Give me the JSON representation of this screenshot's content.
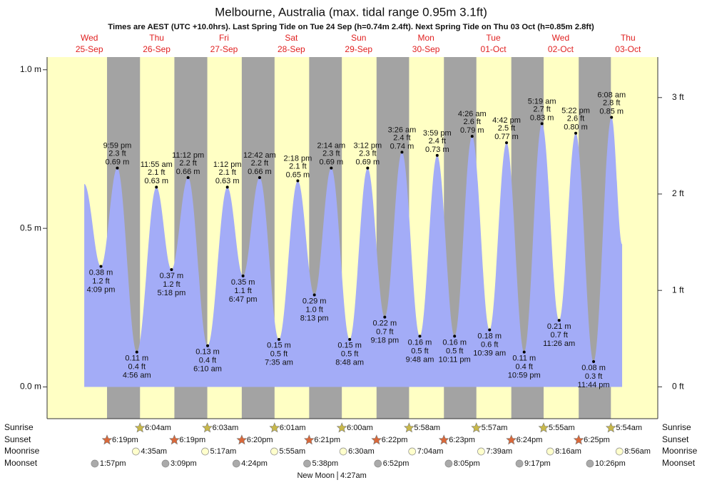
{
  "header": {
    "title": "Melbourne, Australia (max. tidal range 0.95m 3.1ft)",
    "subtitle": "Times are AEST (UTC +10.0hrs). Last Spring Tide on Tue 24 Sep (h=0.74m 2.4ft). Next Spring Tide on Thu 03 Oct (h=0.85m 2.8ft)"
  },
  "chart_data": {
    "type": "area",
    "days": [
      {
        "weekday": "Wed",
        "date": "25-Sep"
      },
      {
        "weekday": "Thu",
        "date": "26-Sep"
      },
      {
        "weekday": "Fri",
        "date": "27-Sep"
      },
      {
        "weekday": "Sat",
        "date": "28-Sep"
      },
      {
        "weekday": "Sun",
        "date": "29-Sep"
      },
      {
        "weekday": "Mon",
        "date": "30-Sep"
      },
      {
        "weekday": "Tue",
        "date": "01-Oct"
      },
      {
        "weekday": "Wed",
        "date": "02-Oct"
      },
      {
        "weekday": "Thu",
        "date": "03-Oct"
      }
    ],
    "xlim": [
      -3.05,
      214.6
    ],
    "ylim": [
      -0.1,
      1.04
    ],
    "yticks": [
      {
        "value": 0,
        "label": "0.0 m"
      },
      {
        "value": 0.5,
        "label": "0.5 m"
      },
      {
        "value": 1,
        "label": "1.0 m"
      }
    ],
    "y2lim": [
      -0.33,
      3.42
    ],
    "y2ticks": [
      {
        "value": 0,
        "label": "0 ft"
      },
      {
        "value": 1,
        "label": "1 ft"
      },
      {
        "value": 2,
        "label": "2 ft"
      },
      {
        "value": 3,
        "label": "3 ft"
      }
    ],
    "color": "#a3acf7",
    "day_color": "#ffffc4",
    "night_color": "#a3a3a3",
    "curve_start": {
      "hour": 10.2,
      "height": 0.64
    },
    "curve_end": {
      "hour": 201.9,
      "height": 0.45
    },
    "tides": [
      {
        "time": "4:09 pm",
        "height": 0.38,
        "height_label": "0.38 m",
        "ft_label": "1.2 ft"
      },
      {
        "time": "9:59 pm",
        "height": 0.69,
        "height_label": "0.69 m",
        "ft_label": "2.3 ft"
      },
      {
        "time": "4:56 am",
        "height": 0.11,
        "height_label": "0.11 m",
        "ft_label": "0.4 ft"
      },
      {
        "time": "11:55 am",
        "height": 0.63,
        "height_label": "0.63 m",
        "ft_label": "2.1 ft"
      },
      {
        "time": "5:18 pm",
        "height": 0.37,
        "height_label": "0.37 m",
        "ft_label": "1.2 ft"
      },
      {
        "time": "11:12 pm",
        "height": 0.66,
        "height_label": "0.66 m",
        "ft_label": "2.2 ft"
      },
      {
        "time": "6:10 am",
        "height": 0.13,
        "height_label": "0.13 m",
        "ft_label": "0.4 ft"
      },
      {
        "time": "1:12 pm",
        "height": 0.63,
        "height_label": "0.63 m",
        "ft_label": "2.1 ft"
      },
      {
        "time": "6:47 pm",
        "height": 0.35,
        "height_label": "0.35 m",
        "ft_label": "1.1 ft"
      },
      {
        "time": "12:42 am",
        "height": 0.66,
        "height_label": "0.66 m",
        "ft_label": "2.2 ft"
      },
      {
        "time": "7:35 am",
        "height": 0.15,
        "height_label": "0.15 m",
        "ft_label": "0.5 ft"
      },
      {
        "time": "2:18 pm",
        "height": 0.65,
        "height_label": "0.65 m",
        "ft_label": "2.1 ft"
      },
      {
        "time": "8:13 pm",
        "height": 0.29,
        "height_label": "0.29 m",
        "ft_label": "1.0 ft"
      },
      {
        "time": "2:14 am",
        "height": 0.69,
        "height_label": "0.69 m",
        "ft_label": "2.3 ft"
      },
      {
        "time": "8:48 am",
        "height": 0.15,
        "height_label": "0.15 m",
        "ft_label": "0.5 ft"
      },
      {
        "time": "3:12 pm",
        "height": 0.69,
        "height_label": "0.69 m",
        "ft_label": "2.3 ft"
      },
      {
        "time": "9:18 pm",
        "height": 0.22,
        "height_label": "0.22 m",
        "ft_label": "0.7 ft"
      },
      {
        "time": "3:26 am",
        "height": 0.74,
        "height_label": "0.74 m",
        "ft_label": "2.4 ft"
      },
      {
        "time": "9:48 am",
        "height": 0.16,
        "height_label": "0.16 m",
        "ft_label": "0.5 ft"
      },
      {
        "time": "3:59 pm",
        "height": 0.73,
        "height_label": "0.73 m",
        "ft_label": "2.4 ft"
      },
      {
        "time": "10:11 pm",
        "height": 0.16,
        "height_label": "0.16 m",
        "ft_label": "0.5 ft"
      },
      {
        "time": "4:26 am",
        "height": 0.79,
        "height_label": "0.79 m",
        "ft_label": "2.6 ft"
      },
      {
        "time": "10:39 am",
        "height": 0.18,
        "height_label": "0.18 m",
        "ft_label": "0.6 ft"
      },
      {
        "time": "4:42 pm",
        "height": 0.77,
        "height_label": "0.77 m",
        "ft_label": "2.5 ft"
      },
      {
        "time": "10:59 pm",
        "height": 0.11,
        "height_label": "0.11 m",
        "ft_label": "0.4 ft"
      },
      {
        "time": "5:19 am",
        "height": 0.83,
        "height_label": "0.83 m",
        "ft_label": "2.7 ft"
      },
      {
        "time": "11:26 am",
        "height": 0.21,
        "height_label": "0.21 m",
        "ft_label": "0.7 ft"
      },
      {
        "time": "5:22 pm",
        "height": 0.8,
        "height_label": "0.80 m",
        "ft_label": "2.6 ft"
      },
      {
        "time": "11:44 pm",
        "height": 0.08,
        "height_label": "0.08 m",
        "ft_label": "0.3 ft"
      },
      {
        "time": "6:08 am",
        "height": 0.85,
        "height_label": "0.85 m",
        "ft_label": "2.8 ft"
      }
    ],
    "almanac": {
      "labels": [
        "Sunrise",
        "Sunset",
        "Moonrise",
        "Moonset"
      ],
      "sunrise": [
        null,
        "6:04am",
        "6:03am",
        "6:01am",
        "6:00am",
        "5:58am",
        "5:57am",
        "5:55am",
        "5:54am"
      ],
      "sunset": [
        "6:19pm",
        "6:19pm",
        "6:20pm",
        "6:21pm",
        "6:22pm",
        "6:23pm",
        "6:24pm",
        "6:25pm",
        null
      ],
      "moonrise": [
        null,
        "4:35am",
        "5:17am",
        "5:55am",
        "6:30am",
        "7:04am",
        "7:39am",
        "8:16am",
        "8:56am"
      ],
      "moonset": [
        "1:57pm",
        "3:09pm",
        "4:24pm",
        "5:38pm",
        "6:52pm",
        "8:05pm",
        "9:17pm",
        "10:26pm",
        null
      ]
    },
    "moon_phase": {
      "label": "New Moon",
      "day": 4,
      "time": "4:27am"
    }
  }
}
